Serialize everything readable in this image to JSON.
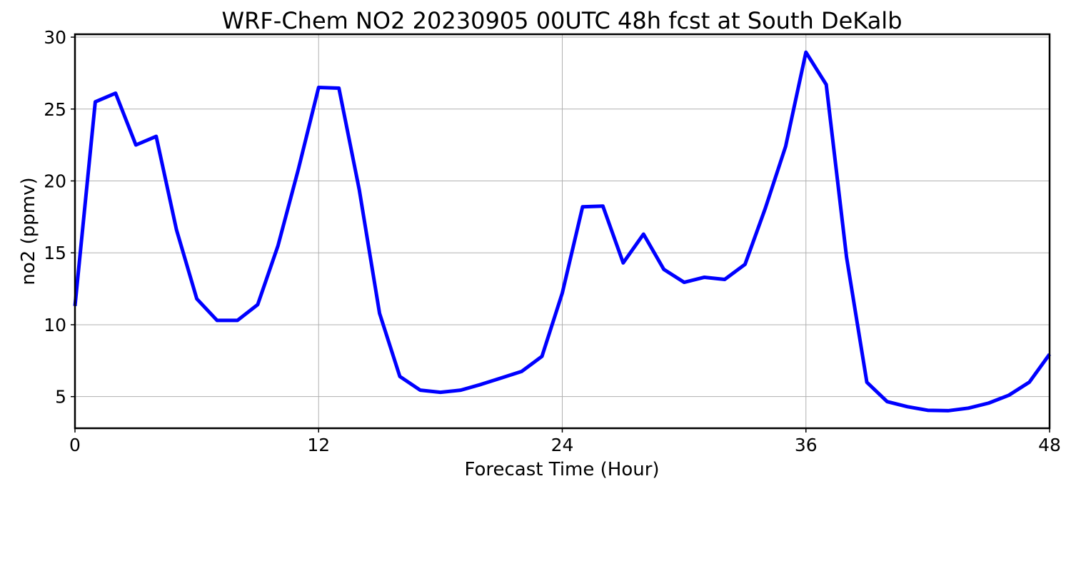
{
  "chart_data": {
    "type": "line",
    "title": "WRF-Chem NO2  20230905 00UTC 48h fcst at South DeKalb",
    "xlabel": "Forecast Time (Hour)",
    "ylabel": "no2  (ppmv)",
    "xlim": [
      0,
      48
    ],
    "ylim": [
      2.8,
      30.2
    ],
    "xticks": [
      0,
      12,
      24,
      36,
      48
    ],
    "yticks": [
      5,
      10,
      15,
      20,
      25,
      30
    ],
    "grid": true,
    "colors": {
      "series": "#0000ff",
      "grid": "#b0b0b0",
      "frame": "#000000"
    },
    "x": [
      0,
      1,
      2,
      3,
      4,
      5,
      6,
      7,
      8,
      9,
      10,
      11,
      12,
      13,
      14,
      15,
      16,
      17,
      18,
      19,
      20,
      21,
      22,
      23,
      24,
      25,
      26,
      27,
      28,
      29,
      30,
      31,
      32,
      33,
      34,
      35,
      36,
      37,
      38,
      39,
      40,
      41,
      42,
      43,
      44,
      45,
      46,
      47,
      48
    ],
    "series": [
      {
        "values": [
          11.3,
          25.5,
          26.1,
          22.5,
          23.1,
          16.6,
          11.8,
          10.3,
          10.3,
          11.4,
          15.5,
          20.8,
          26.5,
          26.45,
          19.4,
          10.8,
          6.4,
          5.45,
          5.3,
          5.45,
          5.85,
          6.3,
          6.75,
          7.8,
          12.2,
          18.2,
          18.25,
          14.3,
          16.3,
          13.85,
          12.95,
          13.3,
          13.15,
          14.2,
          18.1,
          22.4,
          28.95,
          26.7,
          14.7,
          6.0,
          4.65,
          4.3,
          4.05,
          4.02,
          4.2,
          4.55,
          5.1,
          6.0,
          7.95
        ]
      }
    ]
  }
}
